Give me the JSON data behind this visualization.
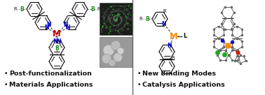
{
  "background_color": "#ffffff",
  "left_bullets": [
    "Post-functionalization",
    "Materials Applications"
  ],
  "right_bullets": [
    "New Binding Modes",
    "Catalysis Applications"
  ],
  "bullet_fontsize": 6.8,
  "M_color_left": "#cc0000",
  "M_color_right": "#FF8C00",
  "B_color": "#228B22",
  "N_color": "#0000cc",
  "figsize": [
    3.78,
    1.36
  ],
  "dpi": 100,
  "divider_color": "#666666",
  "thumb1_color": "#1a1a1a",
  "thumb2_color": "#999999"
}
